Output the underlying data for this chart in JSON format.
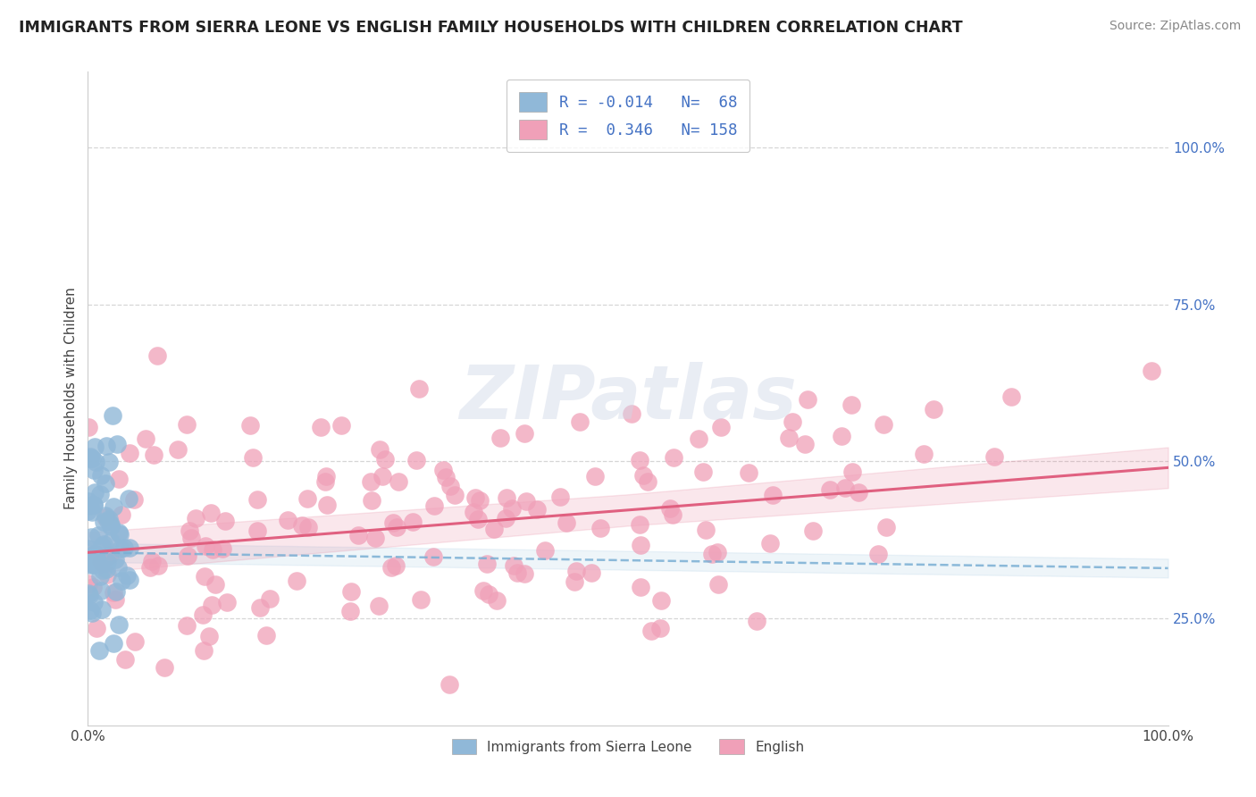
{
  "title": "IMMIGRANTS FROM SIERRA LEONE VS ENGLISH FAMILY HOUSEHOLDS WITH CHILDREN CORRELATION CHART",
  "source": "Source: ZipAtlas.com",
  "ylabel": "Family Households with Children",
  "legend_label_blue": "Immigrants from Sierra Leone",
  "legend_label_pink": "English",
  "R_blue": -0.014,
  "N_blue": 68,
  "R_pink": 0.346,
  "N_pink": 158,
  "right_yticklabels": [
    "25.0%",
    "50.0%",
    "75.0%",
    "100.0%"
  ],
  "right_ytick_vals": [
    0.25,
    0.5,
    0.75,
    1.0
  ],
  "color_blue_scatter": "#90b8d8",
  "color_pink_scatter": "#f0a0b8",
  "color_blue_line": "#7aafd4",
  "color_pink_line": "#e06080",
  "color_blue_text": "#4472c4",
  "watermark_text": "ZIPatlas",
  "background": "#ffffff",
  "grid_color": "#cccccc",
  "xlim": [
    0.0,
    1.0
  ],
  "ylim": [
    0.08,
    1.12
  ],
  "title_fontsize": 12.5,
  "source_fontsize": 10,
  "axis_label_fontsize": 11,
  "tick_fontsize": 11
}
